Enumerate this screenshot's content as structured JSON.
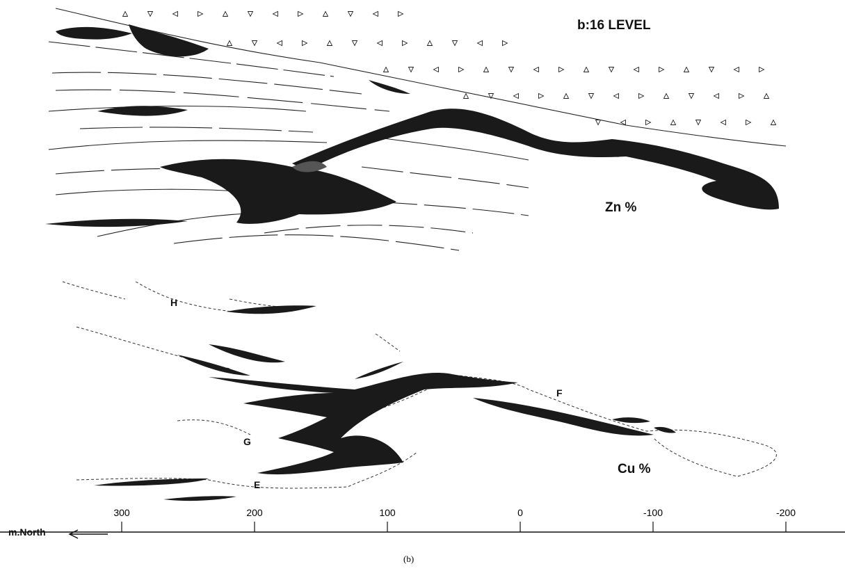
{
  "title": "b:16 LEVEL",
  "upper_label": "Zn %",
  "lower_label": "Cu %",
  "zone_labels": [
    "H",
    "G",
    "E",
    "F"
  ],
  "scale": {
    "label": "m.North",
    "ticks": [
      300,
      200,
      100,
      0,
      -100,
      -200
    ]
  },
  "caption": "(b)"
}
